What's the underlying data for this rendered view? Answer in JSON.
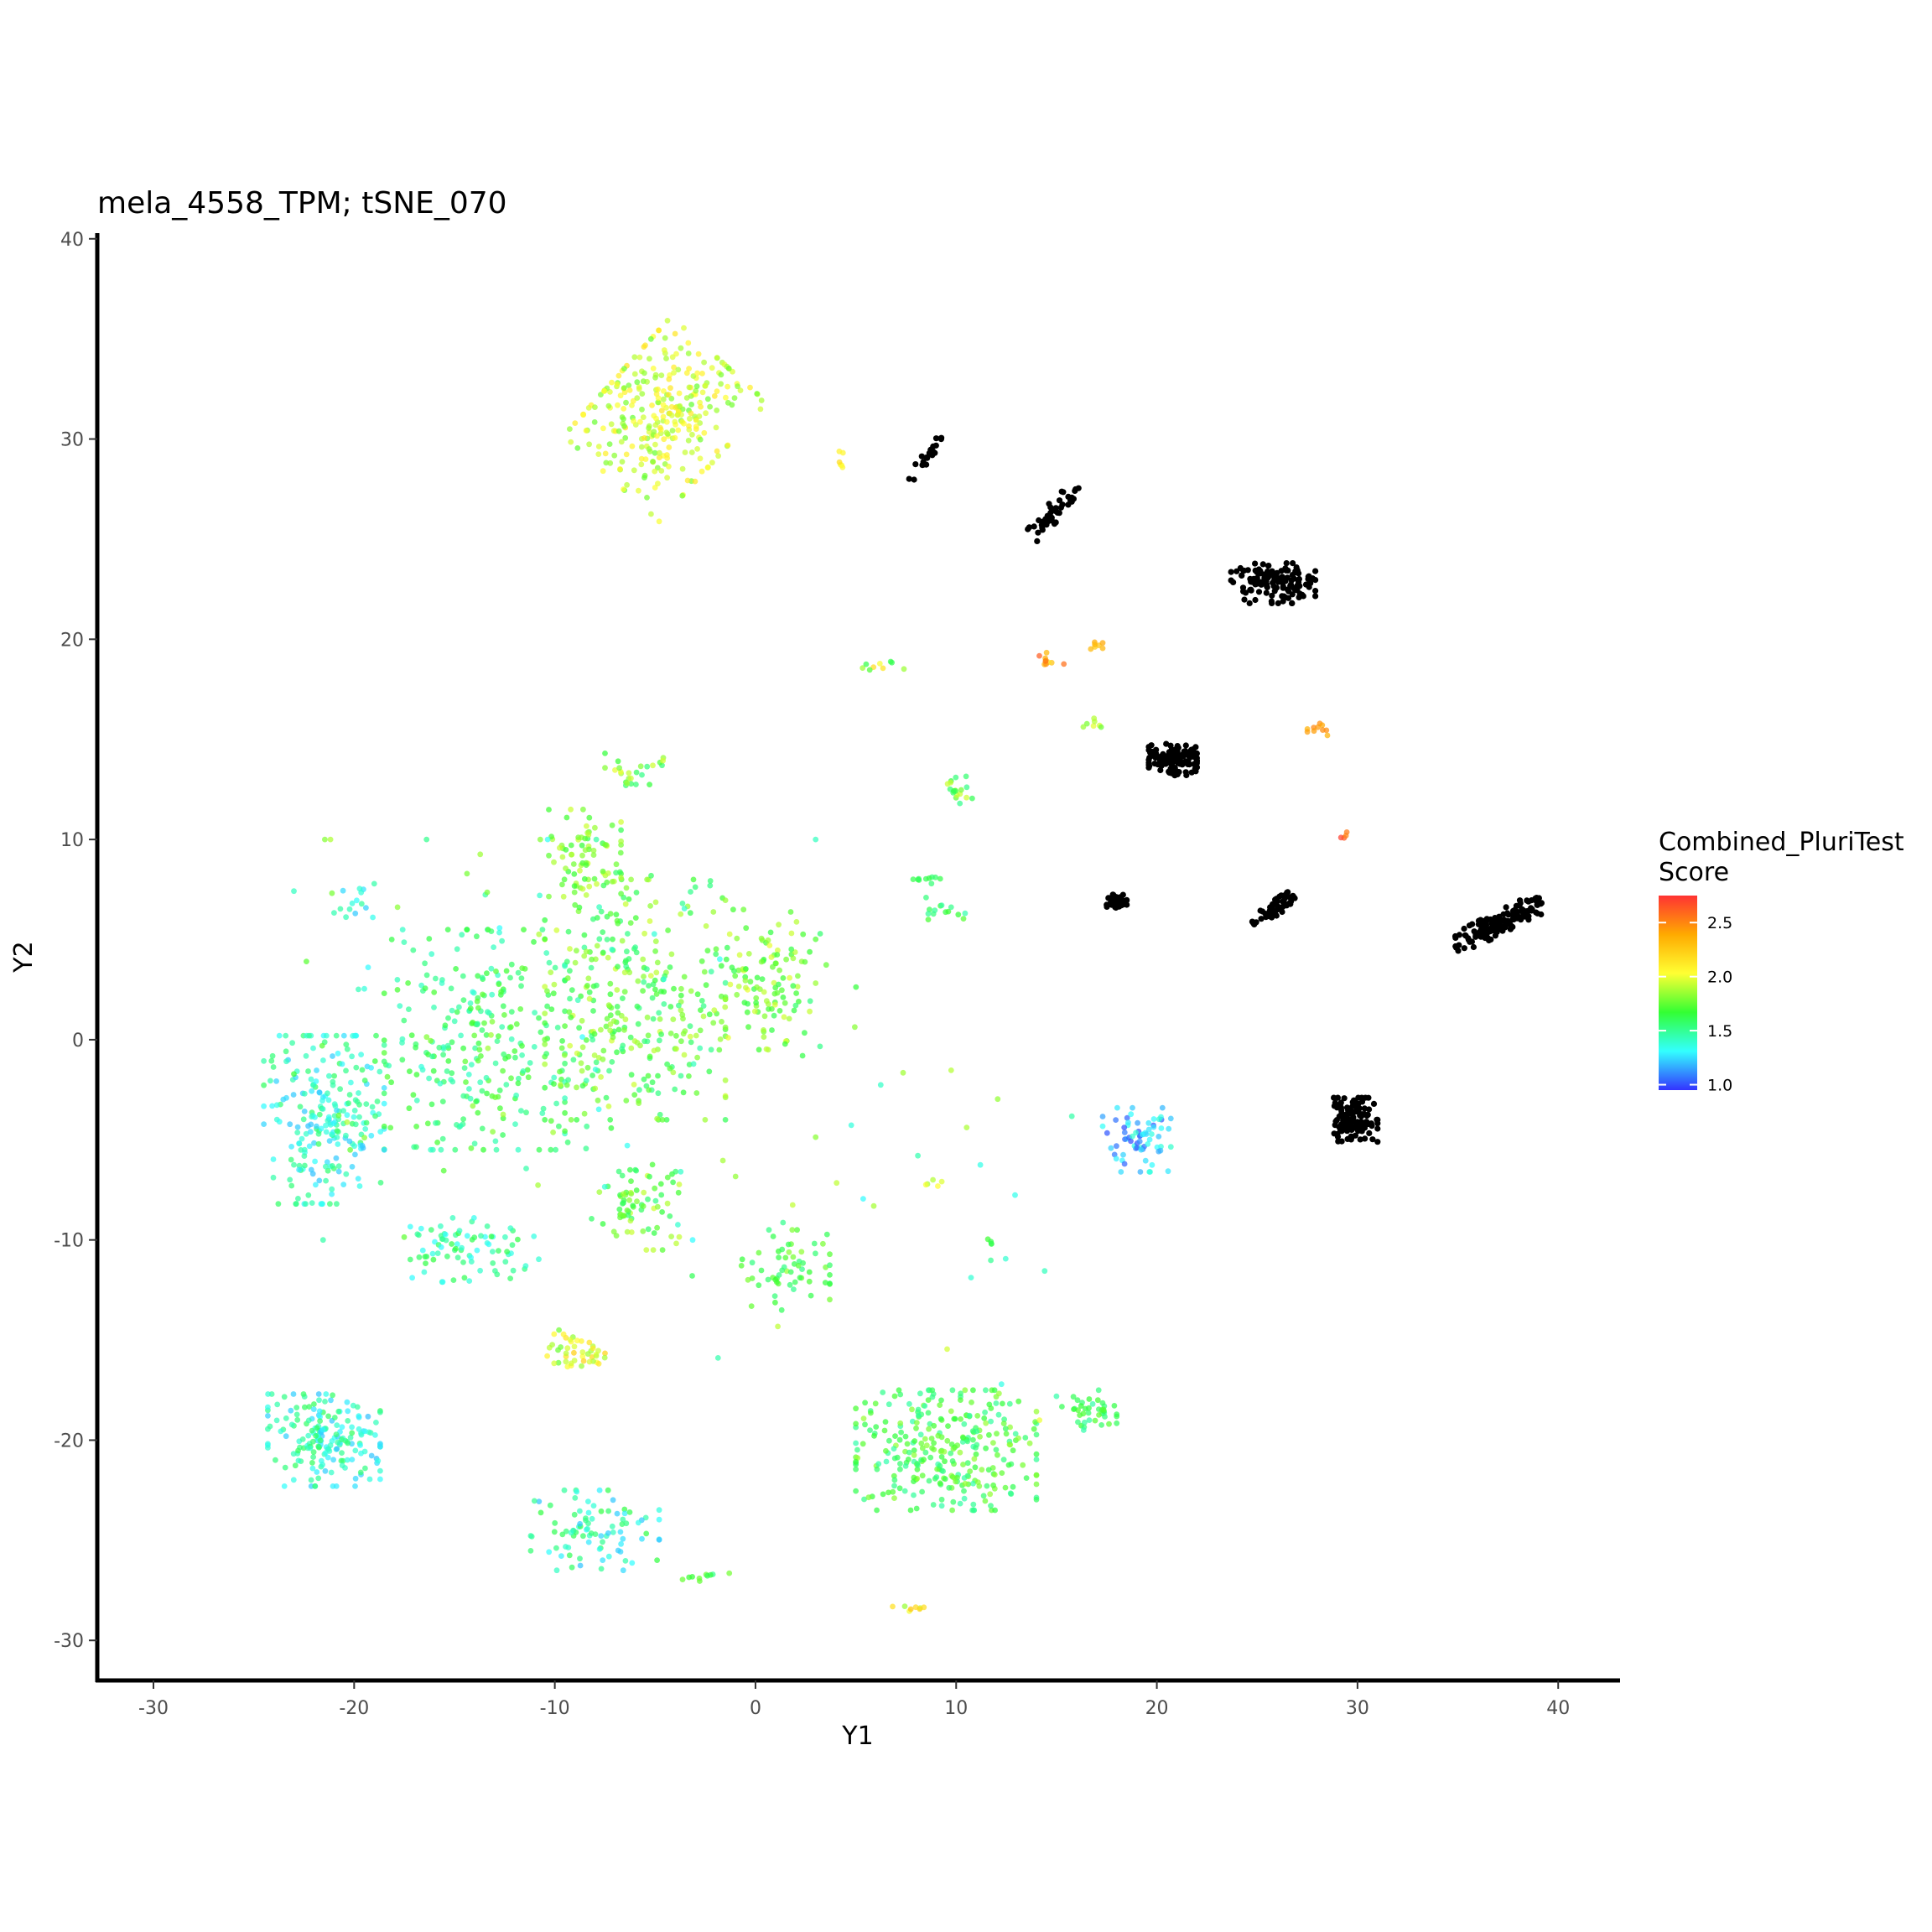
{
  "chart_data": {
    "type": "scatter",
    "title": "mela_4558_TPM; tSNE_070",
    "xlabel": "Y1",
    "ylabel": "Y2",
    "xlim": [
      -32.8,
      43.0
    ],
    "ylim": [
      -32.0,
      40.2
    ],
    "xticks": [
      -30,
      -20,
      -10,
      0,
      10,
      20,
      30,
      40
    ],
    "xtick_labels": [
      "-30",
      "-20",
      "-10",
      "0",
      "10",
      "20",
      "30",
      "40"
    ],
    "yticks": [
      -30,
      -20,
      -10,
      0,
      10,
      20,
      30,
      40
    ],
    "ytick_labels": [
      "-30",
      "-20",
      "-10",
      "0",
      "10",
      "20",
      "30",
      "40"
    ],
    "grid": false,
    "legend": {
      "title": "Combined_PluriTest\nScore",
      "placement": "right",
      "type": "colorbar",
      "range": [
        0.95,
        2.75
      ],
      "ticks": [
        1.0,
        1.5,
        2.0,
        2.5
      ],
      "tick_labels": [
        "1.0",
        "1.5",
        "2.0",
        "2.5"
      ],
      "colormap": [
        "#3333ff",
        "#33ffff",
        "#33ff33",
        "#ffff33",
        "#ffaa00",
        "#ff3333"
      ]
    },
    "na_color": "#000000",
    "series": [
      {
        "group": "scored",
        "clusters": [
          {
            "center": [
              -4.5,
              31.0
            ],
            "spread": [
              3.2,
              4.0
            ],
            "count": 300,
            "score": [
              1.75,
              2.15
            ],
            "tilt": -0.9
          },
          {
            "center": [
              -21.5,
              -4.0
            ],
            "spread": [
              3.0,
              4.2
            ],
            "count": 230,
            "score": [
              1.2,
              1.6
            ]
          },
          {
            "center": [
              -14.0,
              0.0
            ],
            "spread": [
              4.5,
              5.5
            ],
            "count": 250,
            "score": [
              1.4,
              1.75
            ]
          },
          {
            "center": [
              -6.0,
              2.0
            ],
            "spread": [
              4.5,
              6.0
            ],
            "count": 300,
            "score": [
              1.5,
              1.95
            ]
          },
          {
            "center": [
              0.5,
              3.0
            ],
            "spread": [
              2.2,
              3.5
            ],
            "count": 110,
            "score": [
              1.6,
              2.0
            ]
          },
          {
            "center": [
              -8.5,
              9.0
            ],
            "spread": [
              1.8,
              2.5
            ],
            "count": 80,
            "score": [
              1.6,
              1.95
            ]
          },
          {
            "center": [
              -14.0,
              -10.5
            ],
            "spread": [
              3.2,
              1.6
            ],
            "count": 80,
            "score": [
              1.3,
              1.65
            ]
          },
          {
            "center": [
              -6.0,
              -8.5
            ],
            "spread": [
              2.2,
              2.0
            ],
            "count": 70,
            "score": [
              1.55,
              1.95
            ]
          },
          {
            "center": [
              1.5,
              -11.5
            ],
            "spread": [
              2.2,
              2.0
            ],
            "count": 60,
            "score": [
              1.5,
              1.85
            ]
          },
          {
            "center": [
              -21.5,
              -20.0
            ],
            "spread": [
              2.8,
              2.3
            ],
            "count": 190,
            "score": [
              1.2,
              1.6
            ]
          },
          {
            "center": [
              -9.0,
              -15.5
            ],
            "spread": [
              1.5,
              1.0
            ],
            "count": 45,
            "score": [
              1.75,
              2.25
            ]
          },
          {
            "center": [
              -8.0,
              -24.5
            ],
            "spread": [
              3.2,
              2.0
            ],
            "count": 90,
            "score": [
              1.2,
              1.65
            ]
          },
          {
            "center": [
              9.5,
              -20.5
            ],
            "spread": [
              4.5,
              3.0
            ],
            "count": 300,
            "score": [
              1.45,
              1.85
            ]
          },
          {
            "center": [
              16.5,
              -18.5
            ],
            "spread": [
              1.5,
              1.0
            ],
            "count": 40,
            "score": [
              1.45,
              1.75
            ]
          },
          {
            "center": [
              19.0,
              -5.0
            ],
            "spread": [
              1.7,
              1.6
            ],
            "count": 70,
            "score": [
              1.0,
              1.4
            ]
          },
          {
            "center": [
              -20.0,
              7.0
            ],
            "spread": [
              1.0,
              1.0
            ],
            "count": 15,
            "score": [
              1.2,
              1.5
            ]
          },
          {
            "center": [
              -6.0,
              13.5
            ],
            "spread": [
              1.5,
              0.8
            ],
            "count": 25,
            "score": [
              1.5,
              2.0
            ]
          },
          {
            "center": [
              10.0,
              12.5
            ],
            "spread": [
              0.8,
              0.7
            ],
            "count": 18,
            "score": [
              1.5,
              1.95
            ]
          },
          {
            "center": [
              9.5,
              6.5
            ],
            "spread": [
              1.0,
              0.6
            ],
            "count": 14,
            "score": [
              1.45,
              1.75
            ]
          },
          {
            "center": [
              8.5,
              8.0
            ],
            "spread": [
              0.8,
              0.2
            ],
            "count": 10,
            "score": [
              1.5,
              1.7
            ]
          },
          {
            "center": [
              14.5,
              19.0
            ],
            "spread": [
              0.9,
              0.4
            ],
            "count": 10,
            "score": [
              2.1,
              2.7
            ]
          },
          {
            "center": [
              17.0,
              19.7
            ],
            "spread": [
              0.5,
              0.2
            ],
            "count": 7,
            "score": [
              2.25,
              2.4
            ]
          },
          {
            "center": [
              16.8,
              15.8
            ],
            "spread": [
              0.6,
              0.3
            ],
            "count": 7,
            "score": [
              1.75,
              2.0
            ]
          },
          {
            "center": [
              28.0,
              15.5
            ],
            "spread": [
              0.5,
              0.3
            ],
            "count": 10,
            "score": [
              2.35,
              2.5
            ]
          },
          {
            "center": [
              29.4,
              10.2
            ],
            "spread": [
              0.3,
              0.3
            ],
            "count": 4,
            "score": [
              2.4,
              2.75
            ]
          },
          {
            "center": [
              6.0,
              18.6
            ],
            "spread": [
              1.4,
              0.3
            ],
            "count": 9,
            "score": [
              1.6,
              2.3
            ]
          },
          {
            "center": [
              7.5,
              -28.4
            ],
            "spread": [
              1.2,
              0.2
            ],
            "count": 8,
            "score": [
              1.8,
              2.3
            ]
          },
          {
            "center": [
              -2.5,
              -26.8
            ],
            "spread": [
              1.5,
              0.3
            ],
            "count": 10,
            "score": [
              1.5,
              1.8
            ]
          },
          {
            "center": [
              8.8,
              -7.2
            ],
            "spread": [
              0.5,
              0.2
            ],
            "count": 5,
            "score": [
              1.85,
              2.05
            ]
          },
          {
            "center": [
              11.7,
              -10.1
            ],
            "spread": [
              0.3,
              0.2
            ],
            "count": 4,
            "score": [
              1.6,
              1.8
            ]
          },
          {
            "center": [
              4.3,
              29.0
            ],
            "spread": [
              0.2,
              0.6
            ],
            "count": 6,
            "score": [
              2.0,
              2.2
            ]
          },
          {
            "center": [
              -10.0,
              0.0
            ],
            "spread": [
              13.0,
              10.0
            ],
            "count": 130,
            "score": [
              1.3,
              1.9
            ]
          },
          {
            "center": [
              5.0,
              -5.0
            ],
            "spread": [
              12.0,
              14.0
            ],
            "count": 40,
            "score": [
              1.3,
              2.0
            ]
          }
        ]
      },
      {
        "group": "no-score",
        "clusters": [
          {
            "center": [
              8.5,
              29.0
            ],
            "spread": [
              1.3,
              0.25
            ],
            "count": 22,
            "tilt": 1.25
          },
          {
            "center": [
              14.8,
              26.3
            ],
            "spread": [
              1.8,
              0.45
            ],
            "count": 45,
            "tilt": 1.0
          },
          {
            "center": [
              25.8,
              22.8
            ],
            "spread": [
              2.1,
              1.0
            ],
            "count": 140
          },
          {
            "center": [
              20.8,
              14.0
            ],
            "spread": [
              1.2,
              0.8
            ],
            "count": 130
          },
          {
            "center": [
              18.0,
              6.9
            ],
            "spread": [
              0.5,
              0.35
            ],
            "count": 40
          },
          {
            "center": [
              25.8,
              6.5
            ],
            "spread": [
              1.2,
              0.35
            ],
            "count": 55,
            "tilt": 0.7
          },
          {
            "center": [
              37.0,
              5.8
            ],
            "spread": [
              2.4,
              0.55
            ],
            "count": 150,
            "tilt": 0.5
          },
          {
            "center": [
              29.8,
              -4.0
            ],
            "spread": [
              1.2,
              1.1
            ],
            "count": 120
          }
        ]
      }
    ]
  }
}
